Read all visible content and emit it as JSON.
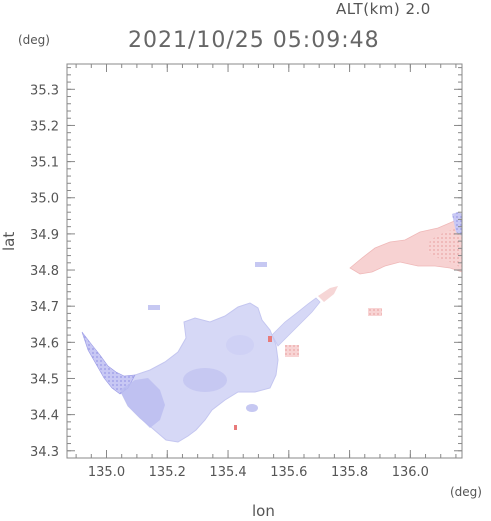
{
  "header": {
    "alt_label": "ALT(km) 2.0",
    "timestamp": "2021/10/25 05:09:48"
  },
  "axes": {
    "x_label": "lon",
    "y_label": "lat",
    "x_unit": "(deg)",
    "y_unit": "(deg)"
  },
  "chart_data": {
    "type": "heatmap",
    "x_ticks": [
      "135.0",
      "135.2",
      "135.4",
      "135.6",
      "135.8",
      "136.0"
    ],
    "x_tick_values": [
      135.0,
      135.2,
      135.4,
      135.6,
      135.8,
      136.0
    ],
    "y_ticks": [
      "35.3",
      "35.2",
      "35.1",
      "35.0",
      "34.9",
      "34.8",
      "34.7",
      "34.6",
      "34.5",
      "34.4",
      "34.3"
    ],
    "y_tick_values": [
      35.3,
      35.2,
      35.1,
      35.0,
      34.9,
      34.8,
      34.7,
      34.6,
      34.5,
      34.4,
      34.3
    ],
    "xlim": [
      134.87,
      136.17
    ],
    "ylim": [
      34.28,
      35.37
    ],
    "grid": false,
    "colors": {
      "negative": "#b8b8f0",
      "negative_strong": "#8a8ae0",
      "positive": "#f5c8c8",
      "positive_strong": "#e87a7a"
    }
  }
}
